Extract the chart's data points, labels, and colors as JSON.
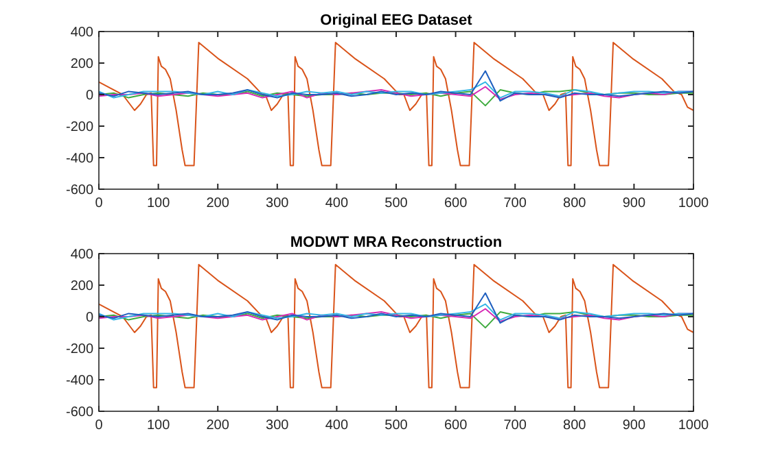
{
  "chart_data": [
    {
      "type": "line",
      "title": "Original EEG Dataset",
      "xlim": [
        0,
        1000
      ],
      "ylim": [
        -600,
        400
      ],
      "xticks": [
        0,
        100,
        200,
        300,
        400,
        500,
        600,
        700,
        800,
        900,
        1000
      ],
      "yticks": [
        -600,
        -400,
        -200,
        0,
        200,
        400
      ],
      "marker": "none",
      "line_style": "solid",
      "x": [
        0,
        25,
        50,
        75,
        100,
        125,
        150,
        175,
        200,
        225,
        250,
        275,
        300,
        325,
        350,
        375,
        400,
        425,
        450,
        475,
        500,
        525,
        550,
        575,
        600,
        625,
        650,
        675,
        700,
        725,
        750,
        775,
        800,
        825,
        850,
        875,
        900,
        925,
        950,
        975,
        1000
      ],
      "series": [
        {
          "color": "#d95319",
          "x": [
            0,
            20,
            40,
            60,
            70,
            80,
            88,
            92,
            97,
            100,
            105,
            112,
            120,
            130,
            140,
            145,
            160,
            168,
            200,
            250,
            270,
            275,
            280,
            290,
            300,
            310,
            318,
            322,
            327,
            330,
            335,
            342,
            350,
            360,
            370,
            375,
            390,
            398,
            430,
            480,
            500,
            505,
            513,
            523,
            533,
            543,
            551,
            555,
            560,
            563,
            568,
            575,
            583,
            593,
            603,
            608,
            623,
            631,
            663,
            713,
            733,
            738,
            747,
            757,
            767,
            777,
            785,
            789,
            794,
            797,
            802,
            809,
            817,
            827,
            837,
            842,
            857,
            865,
            897,
            947,
            967,
            980,
            990,
            1000
          ],
          "values": [
            80,
            40,
            0,
            -100,
            -60,
            0,
            10,
            -450,
            -450,
            240,
            180,
            160,
            100,
            -100,
            -350,
            -450,
            -450,
            330,
            230,
            100,
            20,
            0,
            0,
            -100,
            -60,
            0,
            10,
            -450,
            -450,
            240,
            180,
            160,
            100,
            -100,
            -350,
            -450,
            -450,
            330,
            230,
            100,
            20,
            0,
            0,
            -100,
            -60,
            0,
            10,
            -450,
            -450,
            240,
            180,
            160,
            100,
            -100,
            -350,
            -450,
            -450,
            330,
            230,
            100,
            20,
            0,
            0,
            -100,
            -60,
            0,
            10,
            -450,
            -450,
            240,
            180,
            160,
            100,
            -100,
            -350,
            -450,
            -450,
            330,
            230,
            100,
            20,
            0,
            -80,
            -100
          ]
        },
        {
          "color": "#3daa3d",
          "values": [
            0,
            10,
            -20,
            0,
            10,
            0,
            -10,
            10,
            0,
            0,
            20,
            -10,
            10,
            0,
            -10,
            0,
            0,
            10,
            0,
            10,
            10,
            0,
            10,
            -10,
            10,
            20,
            -70,
            30,
            10,
            0,
            20,
            20,
            30,
            10,
            0,
            10,
            10,
            0,
            0,
            10,
            10
          ]
        },
        {
          "color": "#d62ab4",
          "values": [
            -10,
            0,
            0,
            10,
            -10,
            0,
            10,
            0,
            -10,
            0,
            10,
            -20,
            0,
            20,
            -20,
            10,
            0,
            10,
            20,
            30,
            10,
            -10,
            0,
            10,
            0,
            -10,
            50,
            -30,
            0,
            10,
            0,
            -10,
            0,
            10,
            -10,
            -20,
            0,
            10,
            0,
            20,
            20
          ]
        },
        {
          "color": "#33b5e5",
          "values": [
            20,
            -20,
            0,
            20,
            20,
            20,
            10,
            0,
            20,
            0,
            30,
            10,
            -10,
            0,
            20,
            10,
            20,
            0,
            20,
            10,
            20,
            20,
            0,
            10,
            20,
            30,
            80,
            -20,
            20,
            20,
            10,
            -10,
            30,
            20,
            0,
            10,
            20,
            20,
            10,
            20,
            20
          ]
        },
        {
          "color": "#1f5fbf",
          "values": [
            10,
            -10,
            20,
            10,
            0,
            10,
            20,
            0,
            0,
            10,
            30,
            0,
            -20,
            10,
            0,
            0,
            10,
            -10,
            0,
            20,
            0,
            10,
            0,
            20,
            10,
            0,
            150,
            -40,
            10,
            0,
            0,
            -20,
            10,
            0,
            0,
            -10,
            0,
            10,
            20,
            10,
            20
          ]
        }
      ]
    },
    {
      "type": "line",
      "title": "MODWT MRA Reconstruction",
      "xlim": [
        0,
        1000
      ],
      "ylim": [
        -600,
        400
      ],
      "xticks": [
        0,
        100,
        200,
        300,
        400,
        500,
        600,
        700,
        800,
        900,
        1000
      ],
      "yticks": [
        -600,
        -400,
        -200,
        0,
        200,
        400
      ],
      "marker": "none",
      "line_style": "solid",
      "x": [
        0,
        25,
        50,
        75,
        100,
        125,
        150,
        175,
        200,
        225,
        250,
        275,
        300,
        325,
        350,
        375,
        400,
        425,
        450,
        475,
        500,
        525,
        550,
        575,
        600,
        625,
        650,
        675,
        700,
        725,
        750,
        775,
        800,
        825,
        850,
        875,
        900,
        925,
        950,
        975,
        1000
      ],
      "series": [
        {
          "color": "#d95319",
          "x": [
            0,
            20,
            40,
            60,
            70,
            80,
            88,
            92,
            97,
            100,
            105,
            112,
            120,
            130,
            140,
            145,
            160,
            168,
            200,
            250,
            270,
            275,
            280,
            290,
            300,
            310,
            318,
            322,
            327,
            330,
            335,
            342,
            350,
            360,
            370,
            375,
            390,
            398,
            430,
            480,
            500,
            505,
            513,
            523,
            533,
            543,
            551,
            555,
            560,
            563,
            568,
            575,
            583,
            593,
            603,
            608,
            623,
            631,
            663,
            713,
            733,
            738,
            747,
            757,
            767,
            777,
            785,
            789,
            794,
            797,
            802,
            809,
            817,
            827,
            837,
            842,
            857,
            865,
            897,
            947,
            967,
            980,
            990,
            1000
          ],
          "values": [
            80,
            40,
            0,
            -100,
            -60,
            0,
            10,
            -450,
            -450,
            240,
            180,
            160,
            100,
            -100,
            -350,
            -450,
            -450,
            330,
            230,
            100,
            20,
            0,
            0,
            -100,
            -60,
            0,
            10,
            -450,
            -450,
            240,
            180,
            160,
            100,
            -100,
            -350,
            -450,
            -450,
            330,
            230,
            100,
            20,
            0,
            0,
            -100,
            -60,
            0,
            10,
            -450,
            -450,
            240,
            180,
            160,
            100,
            -100,
            -350,
            -450,
            -450,
            330,
            230,
            100,
            20,
            0,
            0,
            -100,
            -60,
            0,
            10,
            -450,
            -450,
            240,
            180,
            160,
            100,
            -100,
            -350,
            -450,
            -450,
            330,
            230,
            100,
            20,
            0,
            -80,
            -100
          ]
        },
        {
          "color": "#3daa3d",
          "values": [
            0,
            10,
            -20,
            0,
            10,
            0,
            -10,
            10,
            0,
            0,
            20,
            -10,
            10,
            0,
            -10,
            0,
            0,
            10,
            0,
            10,
            10,
            0,
            10,
            -10,
            10,
            20,
            -70,
            30,
            10,
            0,
            20,
            20,
            30,
            10,
            0,
            10,
            10,
            0,
            0,
            10,
            10
          ]
        },
        {
          "color": "#d62ab4",
          "values": [
            -10,
            0,
            0,
            10,
            -10,
            0,
            10,
            0,
            -10,
            0,
            10,
            -20,
            0,
            20,
            -20,
            10,
            0,
            10,
            20,
            30,
            10,
            -10,
            0,
            10,
            0,
            -10,
            50,
            -30,
            0,
            10,
            0,
            -10,
            0,
            10,
            -10,
            -20,
            0,
            10,
            0,
            20,
            20
          ]
        },
        {
          "color": "#33b5e5",
          "values": [
            20,
            -20,
            0,
            20,
            20,
            20,
            10,
            0,
            20,
            0,
            30,
            10,
            -10,
            0,
            20,
            10,
            20,
            0,
            20,
            10,
            20,
            20,
            0,
            10,
            20,
            30,
            80,
            -20,
            20,
            20,
            10,
            -10,
            30,
            20,
            0,
            10,
            20,
            20,
            10,
            20,
            20
          ]
        },
        {
          "color": "#1f5fbf",
          "values": [
            10,
            -10,
            20,
            10,
            0,
            10,
            20,
            0,
            0,
            10,
            30,
            0,
            -20,
            10,
            0,
            0,
            10,
            -10,
            0,
            20,
            0,
            10,
            0,
            20,
            10,
            0,
            150,
            -40,
            10,
            0,
            0,
            -20,
            10,
            0,
            0,
            -10,
            0,
            10,
            20,
            10,
            20
          ]
        }
      ]
    }
  ]
}
